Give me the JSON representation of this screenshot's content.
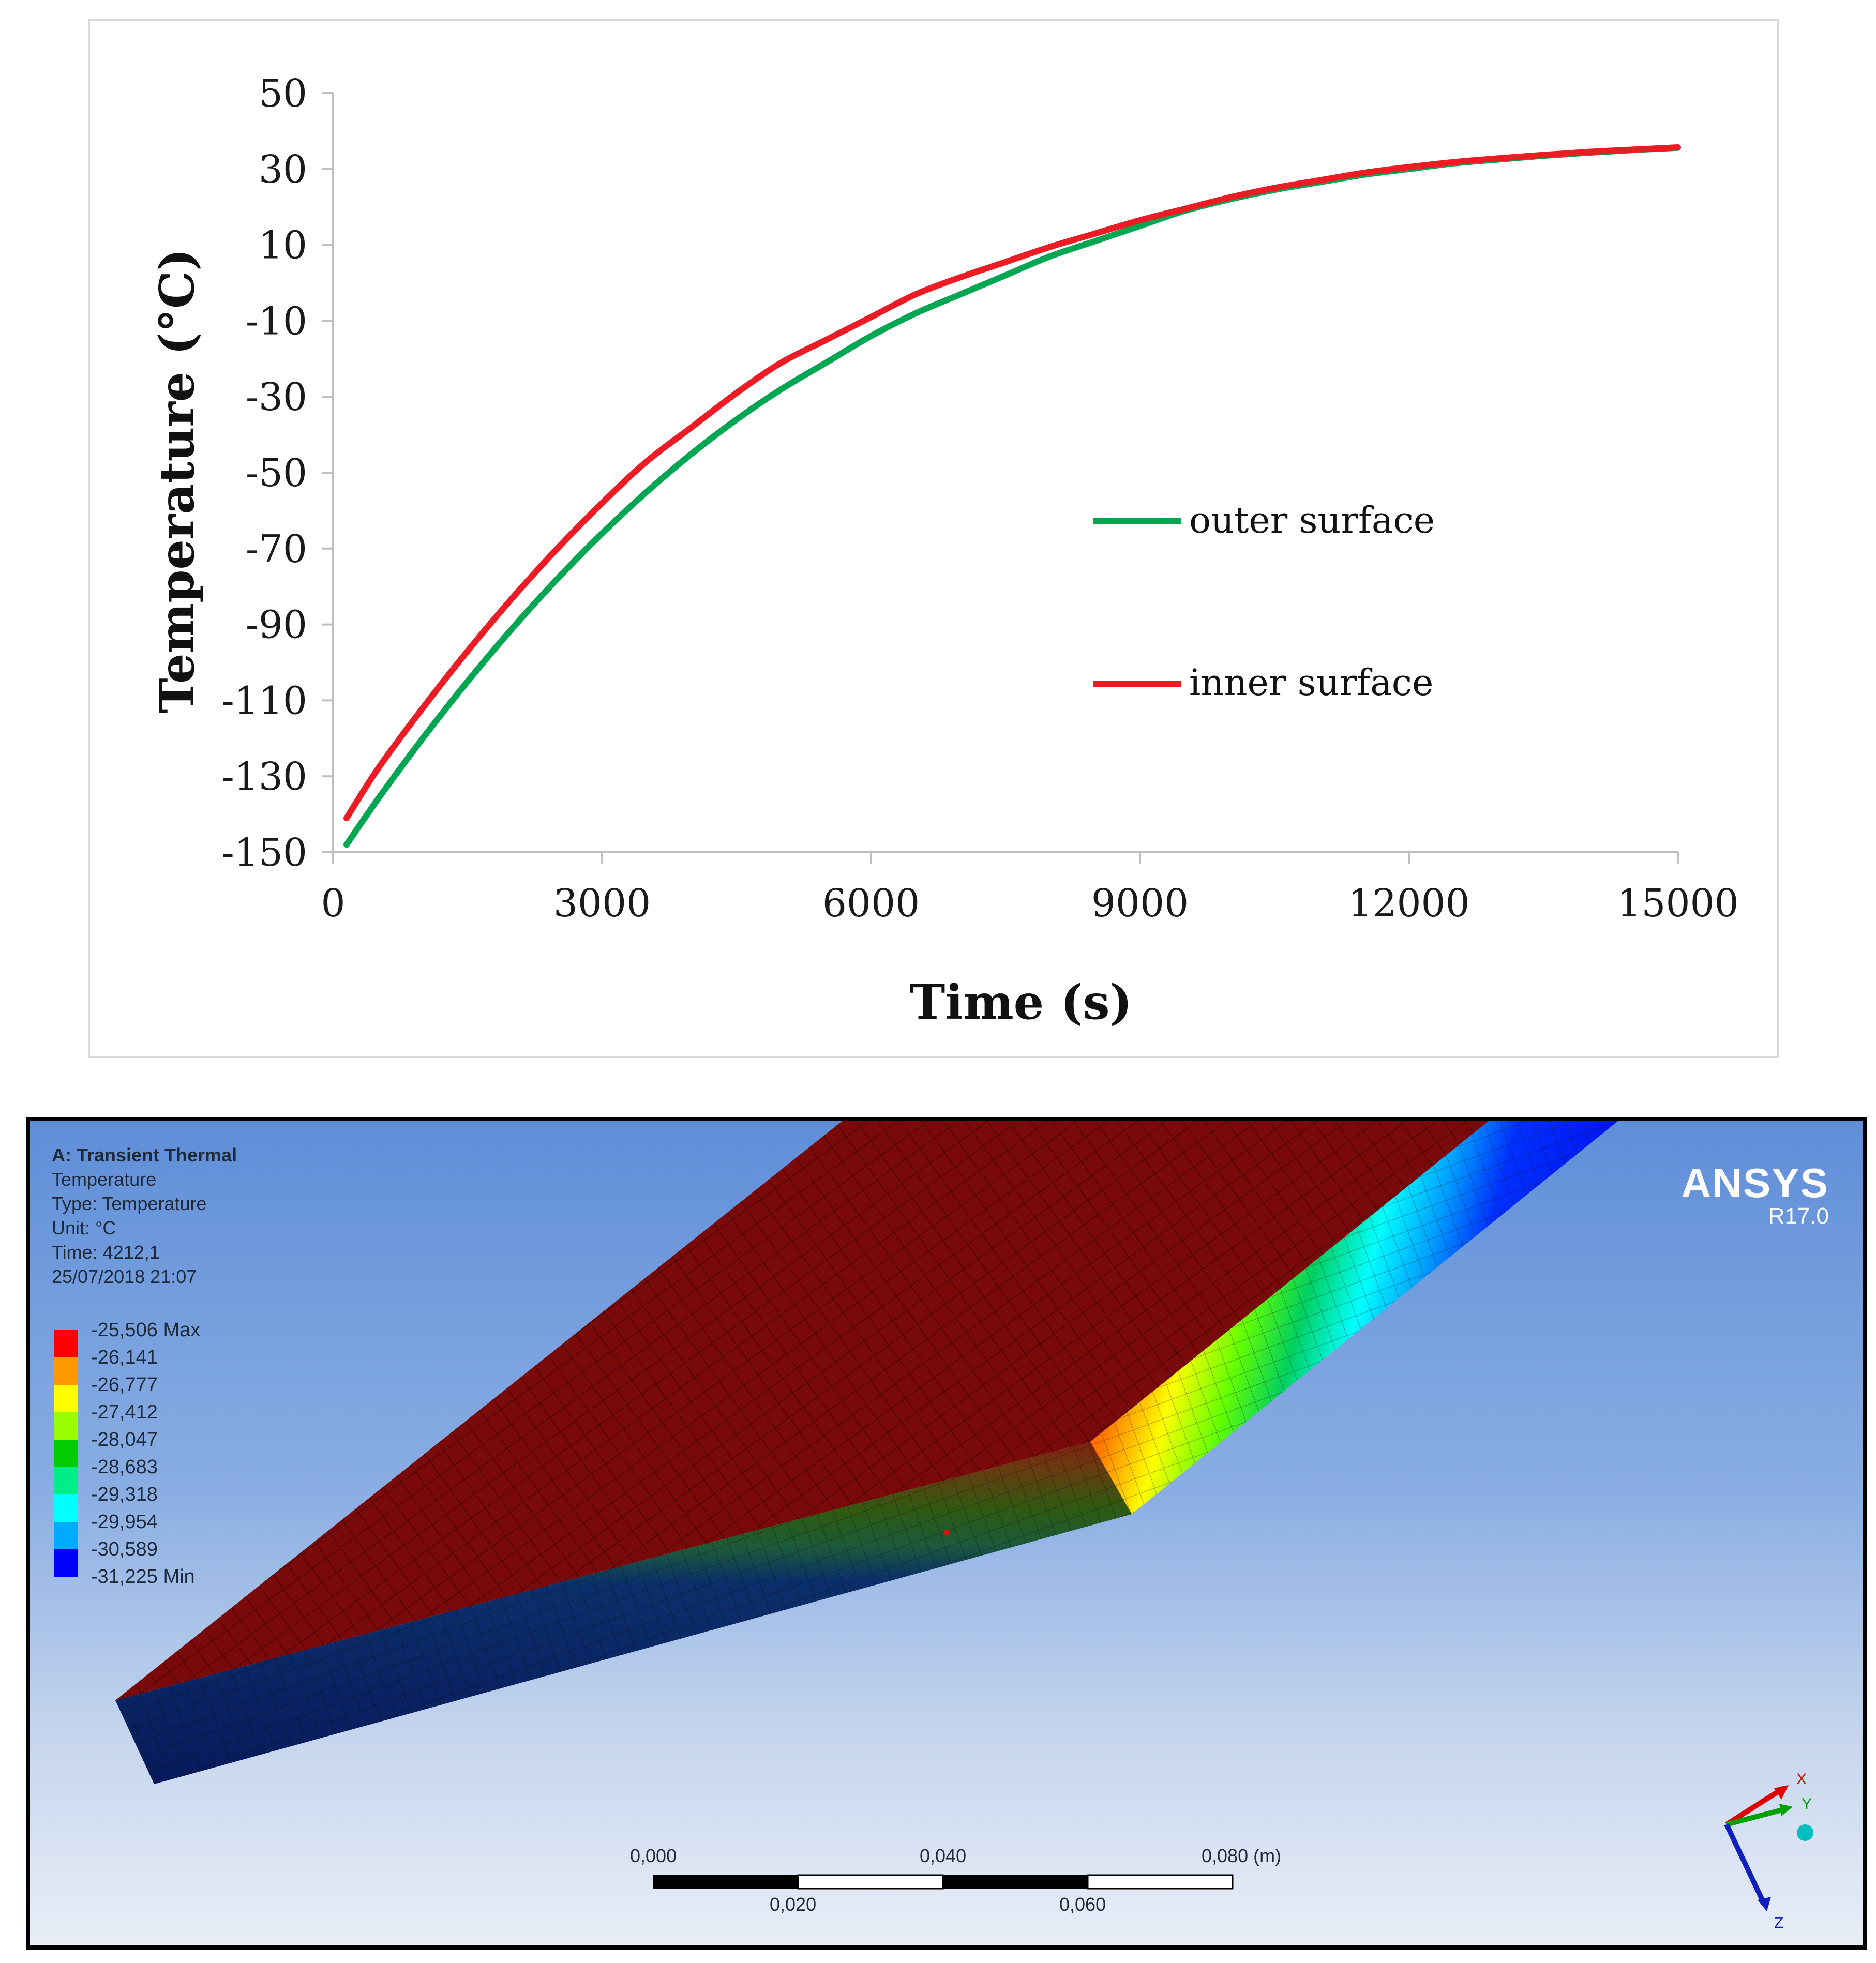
{
  "chart_data": {
    "type": "line",
    "xlabel": "Time (s)",
    "ylabel": "Temperature  (°C)",
    "xlim": [
      0,
      15000
    ],
    "ylim": [
      -150,
      50
    ],
    "x_ticks": [
      0,
      3000,
      6000,
      9000,
      12000,
      15000
    ],
    "y_ticks": [
      50,
      30,
      10,
      -10,
      -30,
      -50,
      -70,
      -90,
      -110,
      -130,
      -150
    ],
    "x_tick_labels": [
      "0",
      "3000",
      "6000",
      "9000",
      "12000",
      "15000"
    ],
    "y_tick_labels": [
      "50",
      "30",
      "10",
      "-10",
      "-30",
      "-50",
      "-70",
      "-90",
      "-110",
      "-130",
      "-150"
    ],
    "grid": false,
    "legend_position": "center-right",
    "series": [
      {
        "name": "outer surface",
        "color": "#00a651",
        "x": [
          150,
          500,
          1000,
          1500,
          2000,
          2500,
          3000,
          3500,
          4000,
          4500,
          5000,
          5500,
          6000,
          6500,
          7000,
          7500,
          8000,
          8500,
          9000,
          9500,
          10000,
          10500,
          11000,
          11500,
          12000,
          12500,
          13000,
          13500,
          14000,
          14500,
          15000
        ],
        "y": [
          -148,
          -136,
          -120,
          -105,
          -91,
          -78,
          -66,
          -55,
          -45,
          -36,
          -28,
          -21,
          -14,
          -8,
          -3,
          2,
          7,
          11,
          15,
          19,
          22,
          24.5,
          26.5,
          28.5,
          30,
          31.5,
          32.5,
          33.5,
          34.3,
          35,
          35.6
        ]
      },
      {
        "name": "inner surface",
        "color": "#ed1c24",
        "x": [
          150,
          500,
          1000,
          1500,
          2000,
          2500,
          3000,
          3500,
          4000,
          4500,
          5000,
          5500,
          6000,
          6500,
          7000,
          7500,
          8000,
          8500,
          9000,
          9500,
          10000,
          10500,
          11000,
          11500,
          12000,
          12500,
          13000,
          13500,
          14000,
          14500,
          15000
        ],
        "y": [
          -141,
          -128,
          -112,
          -97,
          -83,
          -70,
          -58,
          -47,
          -38,
          -29,
          -21,
          -15,
          -9,
          -3,
          1.5,
          5.5,
          9.5,
          13,
          16.5,
          19.5,
          22.5,
          25,
          27,
          29,
          30.5,
          31.8,
          32.8,
          33.7,
          34.5,
          35.1,
          35.7
        ]
      }
    ]
  },
  "fea": {
    "title": "A: Transient Thermal",
    "result": "Temperature",
    "type": "Type: Temperature",
    "unit": "Unit: °C",
    "time": "Time: 4212,1",
    "date": "25/07/2018 21:07",
    "legend": [
      "-25,506 Max",
      "-26,141",
      "-26,777",
      "-27,412",
      "-28,047",
      "-28,683",
      "-29,318",
      "-29,954",
      "-30,589",
      "-31,225 Min"
    ],
    "legend_colors": [
      "#ff0000",
      "#ff9900",
      "#ffff00",
      "#99ff00",
      "#00cc00",
      "#00ee88",
      "#00ffff",
      "#00aaff",
      "#0000ff"
    ],
    "brand": "ANSYS",
    "version": "R17.0",
    "scale_top": [
      "0,000",
      "0,040",
      "0,080 (m)"
    ],
    "scale_bottom": [
      "0,020",
      "0,060"
    ],
    "axes": [
      "X",
      "Y",
      "Z"
    ]
  }
}
